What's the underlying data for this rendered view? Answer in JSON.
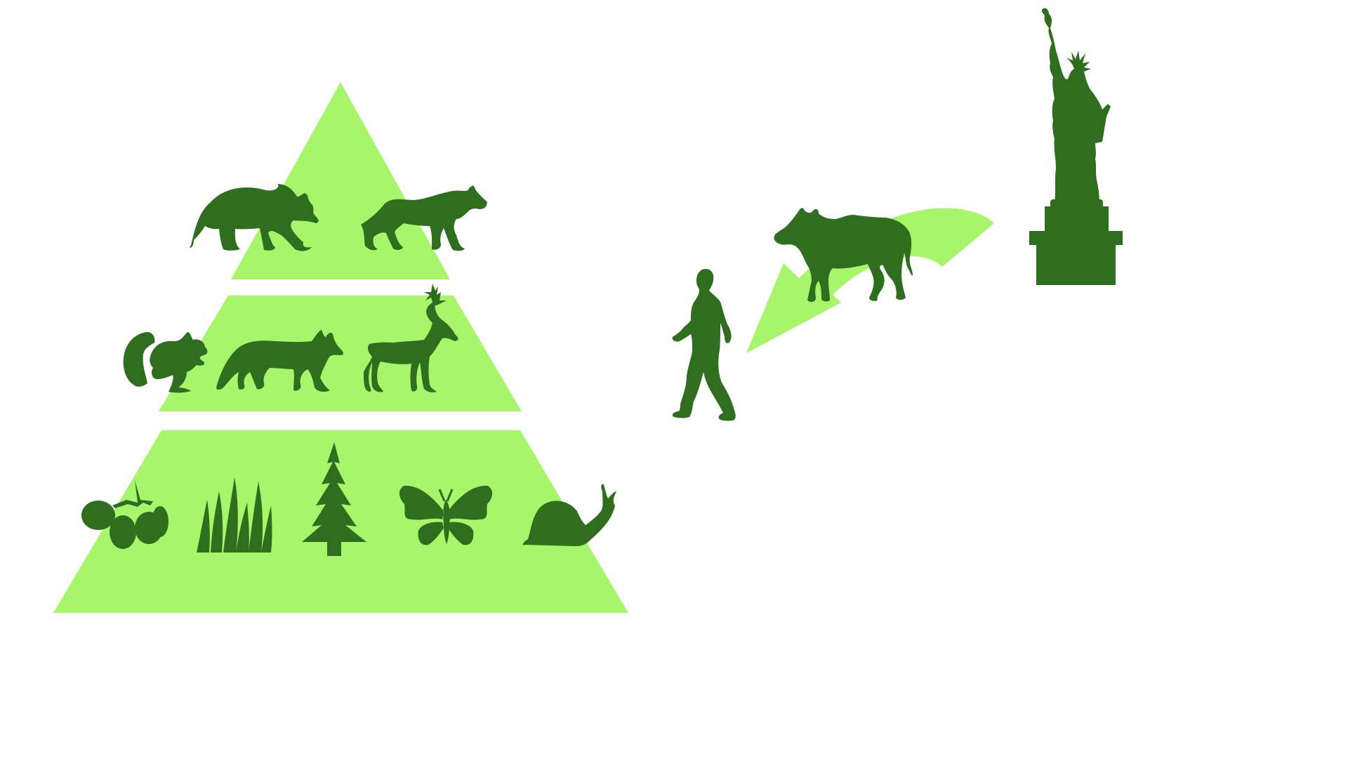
{
  "colors": {
    "background": "#ffffff",
    "light_green": "#a6f56b",
    "dark_green": "#2f6e1f"
  },
  "pyramid": {
    "tiers": [
      {
        "tier": "top",
        "icons": [
          "bear-icon",
          "wolf-icon"
        ]
      },
      {
        "tier": "middle",
        "icons": [
          "squirrel-icon",
          "fox-icon",
          "deer-icon"
        ]
      },
      {
        "tier": "bottom",
        "icons": [
          "berries-icon",
          "grass-icon",
          "pine-tree-icon",
          "butterfly-icon",
          "snail-icon"
        ]
      }
    ]
  },
  "flow": {
    "icons": [
      "walking-person-icon",
      "curved-arrow-icon",
      "cow-icon",
      "statue-of-liberty-icon"
    ]
  }
}
